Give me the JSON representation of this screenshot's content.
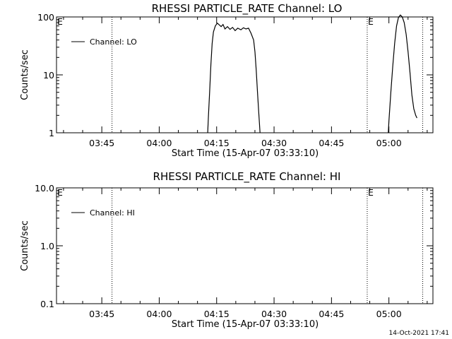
{
  "chart_data": [
    {
      "type": "line",
      "title": "RHESSI PARTICLE_RATE Channel: LO",
      "xlabel": "Start Time (15-Apr-07 03:33:10)",
      "ylabel": "Counts/sec",
      "yscale": "log",
      "ylim": [
        1,
        100
      ],
      "xlim": [
        "03:33:10",
        "05:11:30"
      ],
      "x_tick_labels": [
        "03:45",
        "04:00",
        "04:15",
        "04:30",
        "04:45",
        "05:00"
      ],
      "y_tick_labels": [
        "1",
        "10",
        "100"
      ],
      "legend": {
        "entries": [
          "Channel: LO"
        ],
        "position": "top-left"
      },
      "markers": [
        {
          "time": "03:47:40",
          "label": ""
        },
        {
          "time": "04:54:20",
          "label": "E"
        },
        {
          "time": "05:08:50",
          "label": ""
        }
      ],
      "left_marker_label": "E",
      "series": [
        {
          "name": "Channel: LO",
          "points": [
            [
              "04:12:40",
              1
            ],
            [
              "04:12:50",
              1.8
            ],
            [
              "04:13:10",
              5
            ],
            [
              "04:13:30",
              15
            ],
            [
              "04:13:50",
              35
            ],
            [
              "04:14:10",
              55
            ],
            [
              "04:14:40",
              70
            ],
            [
              "04:15:10",
              78
            ],
            [
              "04:15:40",
              73
            ],
            [
              "04:16:10",
              68
            ],
            [
              "04:16:40",
              74
            ],
            [
              "04:17:10",
              62
            ],
            [
              "04:17:50",
              68
            ],
            [
              "04:18:30",
              61
            ],
            [
              "04:19:10",
              66
            ],
            [
              "04:19:50",
              58
            ],
            [
              "04:20:30",
              64
            ],
            [
              "04:21:20",
              60
            ],
            [
              "04:22:00",
              65
            ],
            [
              "04:22:40",
              62
            ],
            [
              "04:23:20",
              64
            ],
            [
              "04:24:00",
              52
            ],
            [
              "04:24:40",
              40
            ],
            [
              "04:25:00",
              25
            ],
            [
              "04:25:20",
              12
            ],
            [
              "04:25:40",
              5
            ],
            [
              "04:26:00",
              2.2
            ],
            [
              "04:26:20",
              1
            ]
          ]
        },
        {
          "name": "Channel: LO",
          "points": [
            [
              "04:59:50",
              1
            ],
            [
              "05:00:00",
              1.6
            ],
            [
              "05:00:30",
              5
            ],
            [
              "05:01:00",
              14
            ],
            [
              "05:01:30",
              35
            ],
            [
              "05:02:00",
              70
            ],
            [
              "05:02:30",
              98
            ],
            [
              "05:03:00",
              108
            ],
            [
              "05:03:30",
              100
            ],
            [
              "05:04:00",
              80
            ],
            [
              "05:04:30",
              50
            ],
            [
              "05:05:00",
              25
            ],
            [
              "05:05:30",
              11
            ],
            [
              "05:06:00",
              4.5
            ],
            [
              "05:06:30",
              2.6
            ],
            [
              "05:07:00",
              2.0
            ],
            [
              "05:07:20",
              1.8
            ]
          ]
        }
      ]
    },
    {
      "type": "line",
      "title": "RHESSI PARTICLE_RATE Channel: HI",
      "xlabel": "Start Time (15-Apr-07 03:33:10)",
      "ylabel": "Counts/sec",
      "yscale": "log",
      "ylim": [
        0.1,
        10
      ],
      "xlim": [
        "03:33:10",
        "05:11:30"
      ],
      "x_tick_labels": [
        "03:45",
        "04:00",
        "04:15",
        "04:30",
        "04:45",
        "05:00"
      ],
      "y_tick_labels": [
        "0.1",
        "1.0",
        "10.0"
      ],
      "legend": {
        "entries": [
          "Channel: HI"
        ],
        "position": "top-left"
      },
      "markers": [
        {
          "time": "03:47:40",
          "label": ""
        },
        {
          "time": "04:54:20",
          "label": "E"
        },
        {
          "time": "05:08:50",
          "label": ""
        }
      ],
      "left_marker_label": "E",
      "series": [
        {
          "name": "Channel: HI",
          "points": []
        }
      ]
    }
  ],
  "footer": {
    "timestamp": "14-Oct-2021 17:41"
  }
}
